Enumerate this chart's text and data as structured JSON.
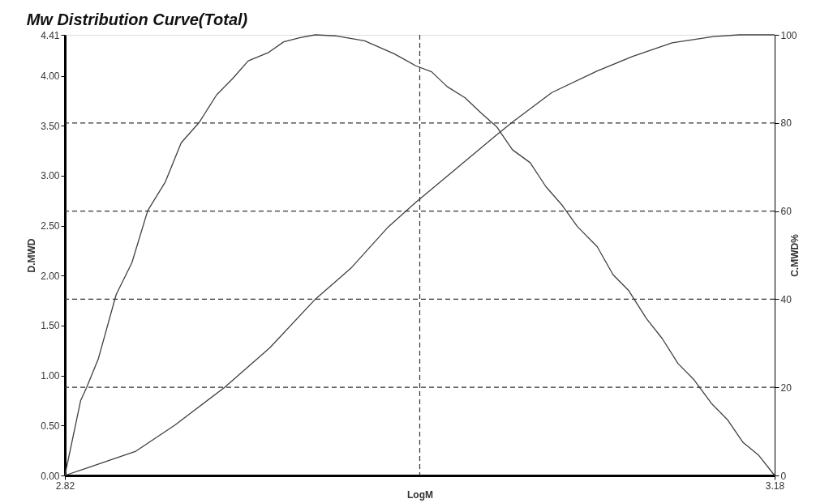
{
  "chart_data": {
    "type": "line",
    "title": "Mw Distribution Curve(Total)",
    "xlabel": "LogM",
    "ylabel": "D.MWD",
    "y2label": "C.MWD%",
    "xlim": [
      2.82,
      3.18
    ],
    "xticks": [
      2.82,
      3.18
    ],
    "ylim": [
      0,
      4.41
    ],
    "yticks": [
      {
        "value": 0,
        "label": "0.00"
      },
      {
        "value": 0.5,
        "label": "0.50"
      },
      {
        "value": 1,
        "label": "1.00"
      },
      {
        "value": 1.5,
        "label": "1.50"
      },
      {
        "value": 2,
        "label": "2.00"
      },
      {
        "value": 2.5,
        "label": "2.50"
      },
      {
        "value": 3,
        "label": "3.00"
      },
      {
        "value": 3.5,
        "label": "3.50"
      },
      {
        "value": 4,
        "label": "4.00"
      },
      4.41
    ],
    "y2lim": [
      0,
      100
    ],
    "y2ticks": [
      0,
      20,
      40,
      60,
      80,
      100
    ],
    "grid": false,
    "marker": "none",
    "line_style": "solid",
    "series": [
      {
        "color": "#404040",
        "x": [
          2.82,
          2.828,
          2.831,
          2.837,
          2.846,
          2.854,
          2.862,
          2.871,
          2.879,
          2.888,
          2.897,
          2.905,
          2.913,
          2.923,
          2.931,
          2.939,
          2.947,
          2.957,
          2.972,
          2.987,
          2.998,
          3.006,
          3.014,
          3.023,
          3.031,
          3.039,
          3.047,
          3.056,
          3.064,
          3.072,
          3.08,
          3.09,
          3.098,
          3.106,
          3.115,
          3.123,
          3.131,
          3.139,
          3.148,
          3.156,
          3.164,
          3.172,
          3.18
        ],
        "values": [
          0,
          0.75,
          0.88,
          1.17,
          1.81,
          2.13,
          2.65,
          2.94,
          3.33,
          3.53,
          3.81,
          3.97,
          4.15,
          4.23,
          4.34,
          4.38,
          4.41,
          4.4,
          4.35,
          4.22,
          4.1,
          4.04,
          3.89,
          3.78,
          3.63,
          3.49,
          3.26,
          3.13,
          2.89,
          2.71,
          2.49,
          2.29,
          2.01,
          1.85,
          1.57,
          1.37,
          1.12,
          0.96,
          0.72,
          0.56,
          0.33,
          0.2,
          0
        ]
      },
      {
        "color": "#404040",
        "axis": "y2",
        "x": [
          2.82,
          2.832,
          2.856,
          2.876,
          2.901,
          2.924,
          2.947,
          2.965,
          2.984,
          2.998,
          3.016,
          3.039,
          3.047,
          3.067,
          3.09,
          3.108,
          3.128,
          3.149,
          3.162,
          3.18
        ],
        "values": [
          0,
          1.8,
          5.5,
          11.5,
          20,
          29,
          40,
          47,
          56.4,
          62,
          68.7,
          77.3,
          80.2,
          86.9,
          91.8,
          95.1,
          98.2,
          99.6,
          100,
          100
        ]
      }
    ],
    "ref_lines": [
      {
        "axis": "y2",
        "value": 20,
        "line_style": "dashed",
        "color": "#333333"
      },
      {
        "axis": "y2",
        "value": 40,
        "line_style": "dashed",
        "color": "#333333"
      },
      {
        "axis": "y2",
        "value": 60,
        "line_style": "dashed",
        "color": "#333333"
      },
      {
        "axis": "y2",
        "value": 80,
        "line_style": "dashed",
        "color": "#333333"
      },
      {
        "axis": "x",
        "value": 3.0,
        "line_style": "dashed",
        "color": "#333333"
      }
    ]
  }
}
